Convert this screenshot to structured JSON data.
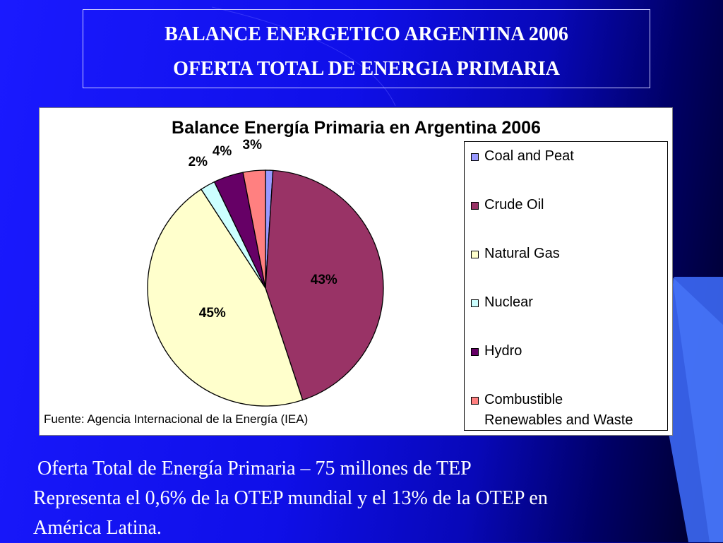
{
  "slide": {
    "title_line1": "BALANCE ENERGETICO ARGENTINA 2006",
    "title_line2": "OFERTA TOTAL DE ENERGIA PRIMARIA",
    "footnote_line1": "Oferta Total de Energía Primaria – 75 millones de TEP",
    "footnote_line2": "Representa el 0,6% de la OTEP mundial y el 13% de la OTEP en",
    "footnote_line3": "América Latina."
  },
  "chart_data": {
    "type": "pie",
    "title": "Balance Energía Primaria en Argentina 2006",
    "source": "Fuente: Agencia Internacional de la Energía (IEA)",
    "legend_position": "right",
    "slices": [
      {
        "label": "Coal and Peat",
        "value": 1,
        "display": "",
        "color": "#9999ff"
      },
      {
        "label": "Crude Oil",
        "value": 43,
        "display": "43%",
        "color": "#993366"
      },
      {
        "label": "Natural Gas",
        "value": 45,
        "display": "45%",
        "color": "#ffffcc"
      },
      {
        "label": "Nuclear",
        "value": 2,
        "display": "2%",
        "color": "#ccffff"
      },
      {
        "label": "Hydro",
        "value": 4,
        "display": "4%",
        "color": "#660066"
      },
      {
        "label": "Combustible Renewables and Waste",
        "value": 3,
        "display": "3%",
        "color": "#ff8080"
      }
    ]
  }
}
